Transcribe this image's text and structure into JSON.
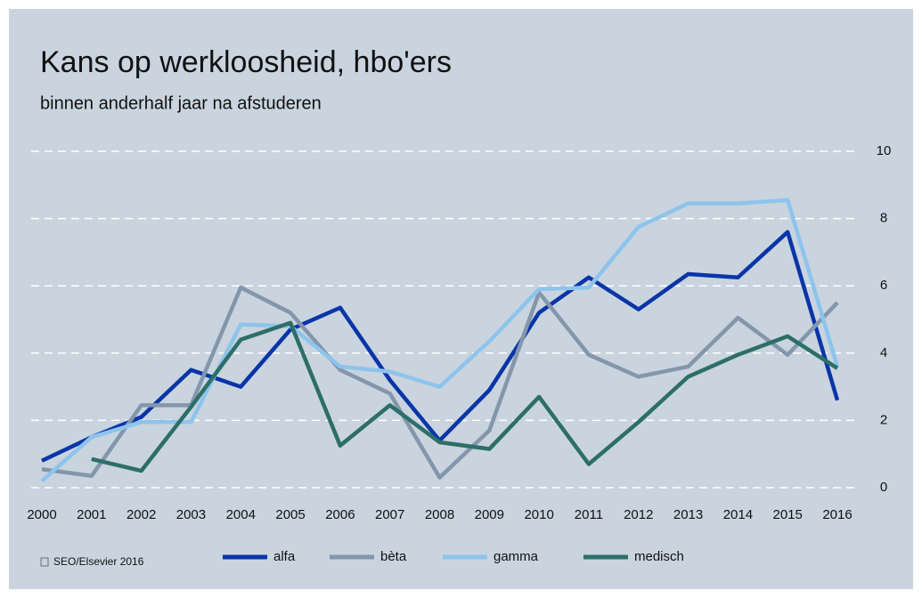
{
  "chart_data": {
    "type": "line",
    "title": "Kans op werkloosheid, hbo'ers",
    "subtitle": "binnen anderhalf jaar na afstuderen",
    "source": "SEO/Elsevier 2016",
    "categories": [
      "2000",
      "2001",
      "2002",
      "2003",
      "2004",
      "2005",
      "2006",
      "2007",
      "2008",
      "2009",
      "2010",
      "2011",
      "2012",
      "2013",
      "2014",
      "2015",
      "2016"
    ],
    "series": [
      {
        "name": "alfa",
        "color": "#0a35a8",
        "values": [
          0.8,
          1.5,
          2.1,
          3.5,
          3.0,
          4.7,
          5.35,
          3.2,
          1.4,
          2.9,
          5.2,
          6.25,
          5.3,
          6.35,
          6.25,
          7.6,
          2.6
        ]
      },
      {
        "name": "bèta",
        "color": "#8496ac",
        "values": [
          0.55,
          0.35,
          2.45,
          2.45,
          5.95,
          5.2,
          3.5,
          2.8,
          0.3,
          1.7,
          5.8,
          3.95,
          3.3,
          3.6,
          5.05,
          3.95,
          5.5
        ]
      },
      {
        "name": "gamma",
        "color": "#8ec4ec",
        "values": [
          0.2,
          1.5,
          1.95,
          1.95,
          4.85,
          4.8,
          3.6,
          3.45,
          3.0,
          4.35,
          5.9,
          5.95,
          7.75,
          8.45,
          8.45,
          8.55,
          3.6
        ]
      },
      {
        "name": "medisch",
        "color": "#2d6e68",
        "values": [
          null,
          0.85,
          0.5,
          2.4,
          4.4,
          4.9,
          1.25,
          2.45,
          1.35,
          1.15,
          2.7,
          0.7,
          1.95,
          3.3,
          3.95,
          4.5,
          3.55
        ]
      }
    ],
    "ylim": [
      0,
      10
    ],
    "yticks": [
      0,
      2,
      4,
      6,
      8,
      10
    ],
    "grid": true,
    "legend": "bottom"
  }
}
